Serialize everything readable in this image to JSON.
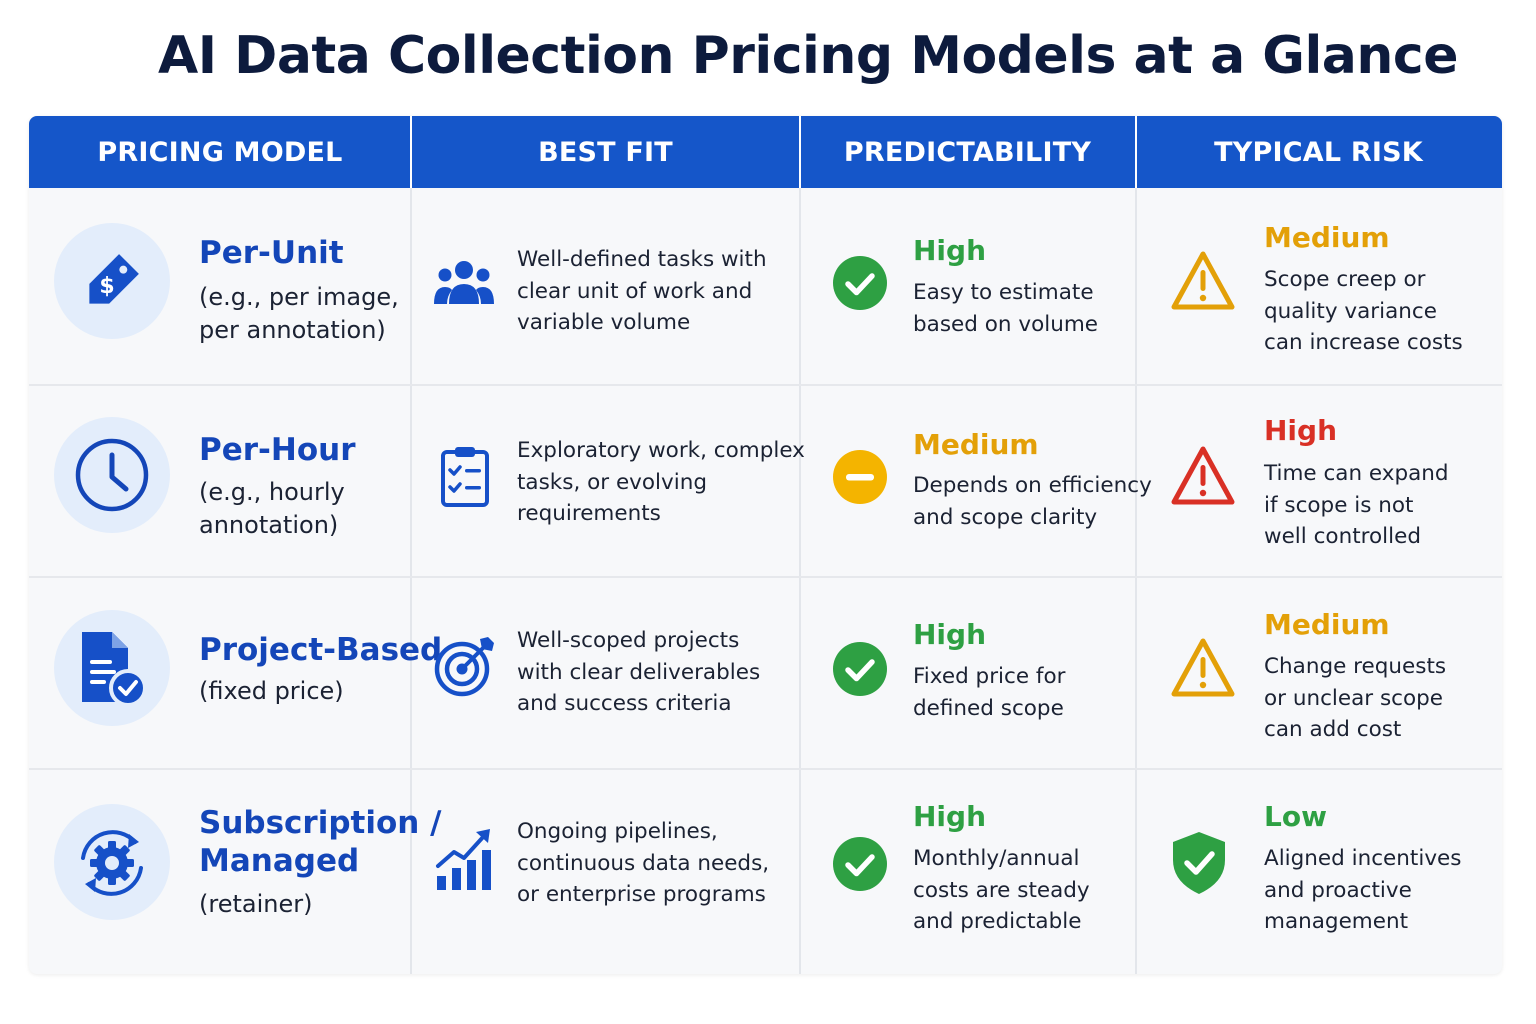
{
  "title": "AI Data Collection Pricing Models at a Glance",
  "colors": {
    "header_bg": "#1556c9",
    "model_blue": "#1446b8",
    "high_green": "#2ea043",
    "medium_amber": "#e3a008",
    "high_red": "#d93025"
  },
  "headers": [
    "PRICING MODEL",
    "BEST FIT",
    "PREDICTABILITY",
    "TYPICAL RISK"
  ],
  "rows": [
    {
      "model_icon": "price-tag-icon",
      "model_name_lines": [
        "Per-Unit"
      ],
      "model_sub_lines": [
        "(e.g., per image,",
        "per annotation)"
      ],
      "fit_icon": "team-icon",
      "fit_lines": [
        "Well-defined tasks with",
        "clear unit of work and",
        "variable volume"
      ],
      "pred_icon": "check-circle-icon",
      "pred_level": "High",
      "pred_lines": [
        "Easy to estimate",
        "based on volume"
      ],
      "risk_icon": "warning-triangle-icon",
      "risk_level": "Medium",
      "risk_lines": [
        "Scope creep or",
        "quality variance",
        "can increase costs"
      ]
    },
    {
      "model_icon": "clock-icon",
      "model_name_lines": [
        "Per-Hour"
      ],
      "model_sub_lines": [
        "(e.g., hourly",
        "annotation)"
      ],
      "fit_icon": "checklist-icon",
      "fit_lines": [
        "Exploratory work, complex",
        "tasks, or evolving",
        "requirements"
      ],
      "pred_icon": "minus-circle-icon",
      "pred_level": "Medium",
      "pred_lines": [
        "Depends on efficiency",
        "and scope clarity"
      ],
      "risk_icon": "warning-triangle-icon",
      "risk_level": "High",
      "risk_lines": [
        "Time can expand",
        "if scope is not",
        "well controlled"
      ]
    },
    {
      "model_icon": "document-check-icon",
      "model_name_lines": [
        "Project-Based"
      ],
      "model_sub_lines": [
        "(fixed price)"
      ],
      "fit_icon": "target-icon",
      "fit_lines": [
        "Well-scoped projects",
        "with clear deliverables",
        "and success criteria"
      ],
      "pred_icon": "check-circle-icon",
      "pred_level": "High",
      "pred_lines": [
        "Fixed price for",
        "defined scope"
      ],
      "risk_icon": "warning-triangle-icon",
      "risk_level": "Medium",
      "risk_lines": [
        "Change requests",
        "or unclear scope",
        "can add cost"
      ]
    },
    {
      "model_icon": "gear-cycle-icon",
      "model_name_lines": [
        "Subscription /",
        "Managed"
      ],
      "model_sub_lines": [
        "(retainer)"
      ],
      "fit_icon": "growth-chart-icon",
      "fit_lines": [
        "Ongoing pipelines,",
        "continuous data needs,",
        "or enterprise programs"
      ],
      "pred_icon": "check-circle-icon",
      "pred_level": "High",
      "pred_lines": [
        "Monthly/annual",
        "costs are steady",
        "and predictable"
      ],
      "risk_icon": "shield-check-icon",
      "risk_level": "Low",
      "risk_lines": [
        "Aligned incentives",
        "and proactive",
        "management"
      ]
    }
  ]
}
